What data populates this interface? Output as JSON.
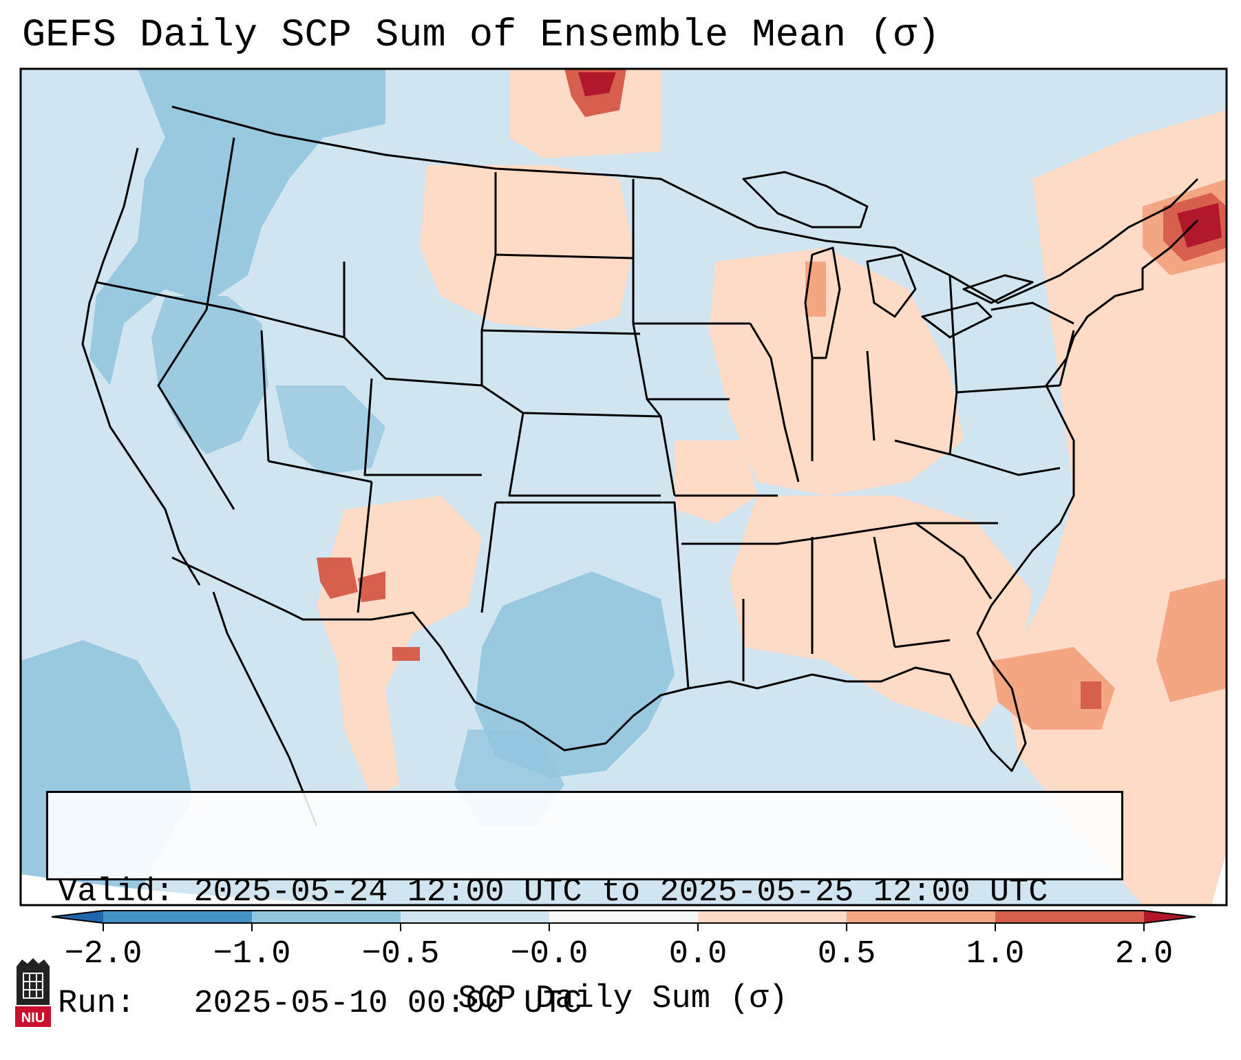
{
  "title": "GEFS Daily SCP Sum of Ensemble Mean (σ)",
  "info": {
    "valid_label": "Valid:",
    "valid_value": "2025-05-24 12:00 UTC to 2025-05-25 12:00 UTC",
    "run_label": "Run:",
    "run_value": "2025-05-10 00:00 UTC"
  },
  "colorbar": {
    "label": "SCP Daily Sum (σ)",
    "ticks": [
      "−2.0",
      "−1.0",
      "−0.5",
      "−0.0",
      "0.0",
      "0.5",
      "1.0",
      "2.0"
    ],
    "bins": [
      {
        "from": -2.0,
        "to": -1.0,
        "color": "#4393c3"
      },
      {
        "from": -1.0,
        "to": -0.5,
        "color": "#92c5de"
      },
      {
        "from": -0.5,
        "to": 0.0,
        "color": "#d1e5f0"
      },
      {
        "from": 0.0,
        "to": 0.0,
        "color": "#f7f7f7"
      },
      {
        "from": 0.0,
        "to": 0.5,
        "color": "#fddbc7"
      },
      {
        "from": 0.5,
        "to": 1.0,
        "color": "#f4a582"
      },
      {
        "from": 1.0,
        "to": 2.0,
        "color": "#d6604d"
      }
    ],
    "under_color": "#2166ac",
    "over_color": "#b2182b",
    "extend": "both"
  },
  "map": {
    "region": "CONUS",
    "background_color": "#d1e5f0",
    "outside_color": "#ffffff",
    "border_color": "#000000"
  },
  "logo": {
    "text": "NIU",
    "icon": "niu-university-logo-icon"
  }
}
